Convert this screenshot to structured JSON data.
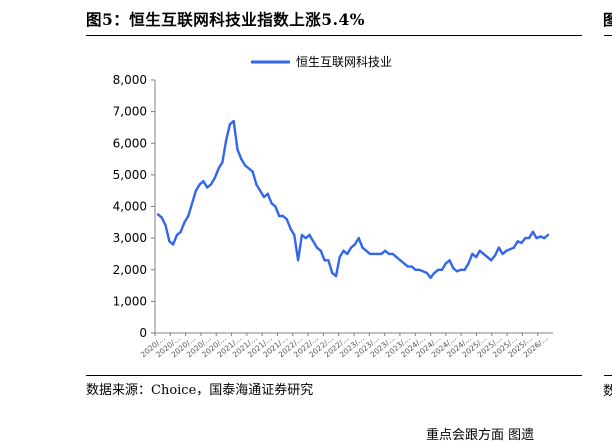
{
  "figure": {
    "title": "图5：恒生互联网科技业指数上涨5.4%",
    "source": "数据来源：Choice，国泰海通证券研究",
    "footer_partial": "重点会跟方面  图遗"
  },
  "colors": {
    "series": "#3366EE",
    "axis": "#808080",
    "text": "#000000"
  },
  "chart_data": {
    "type": "line",
    "title": "",
    "xlabel": "",
    "ylabel": "",
    "ylim": [
      0,
      8000
    ],
    "yticks": [
      "0",
      "1,000",
      "2,000",
      "3,000",
      "4,000",
      "5,000",
      "6,000",
      "7,000",
      "8,000"
    ],
    "xtick_labels": [
      "2020/…",
      "2020/…",
      "2020/…",
      "2020/…",
      "2020/…",
      "2021/…",
      "2021/…",
      "2021/…",
      "2021/…",
      "2022/…",
      "2022/…",
      "2022/…",
      "2022/…",
      "2023/…",
      "2023/…",
      "2023/…",
      "2023/…",
      "2024/…",
      "2024/…",
      "2024/…",
      "2024/…",
      "2025/…",
      "2025/…",
      "2025/…",
      "2025/…",
      "2026/…"
    ],
    "grid": false,
    "legend_position": "top-center",
    "series": [
      {
        "name": "恒生互联网科技业",
        "values": [
          3750,
          3650,
          3400,
          2900,
          2800,
          3100,
          3200,
          3500,
          3700,
          4100,
          4500,
          4700,
          4800,
          4600,
          4700,
          4900,
          5200,
          5400,
          6100,
          6600,
          6700,
          5800,
          5500,
          5300,
          5200,
          5100,
          4700,
          4500,
          4300,
          4400,
          4100,
          4000,
          3700,
          3700,
          3600,
          3300,
          3100,
          2300,
          3100,
          3000,
          3100,
          2900,
          2700,
          2600,
          2300,
          2300,
          1900,
          1800,
          2400,
          2600,
          2500,
          2700,
          2800,
          3000,
          2700,
          2600,
          2500,
          2500,
          2500,
          2500,
          2600,
          2500,
          2500,
          2400,
          2300,
          2200,
          2100,
          2100,
          2000,
          2000,
          1950,
          1900,
          1750,
          1900,
          2000,
          2000,
          2200,
          2300,
          2050,
          1950,
          2000,
          2000,
          2200,
          2500,
          2400,
          2600,
          2500,
          2400,
          2300,
          2450,
          2700,
          2500,
          2600,
          2650,
          2700,
          2900,
          2850,
          3000,
          3000,
          3200,
          3000,
          3050,
          3000,
          3100
        ]
      }
    ]
  }
}
